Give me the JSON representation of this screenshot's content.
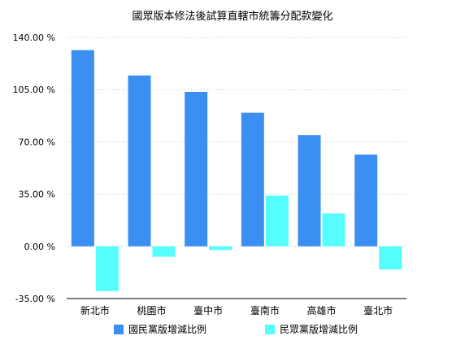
{
  "chart_data": {
    "type": "bar",
    "title": "國眾版本修法後試算直轄市統籌分配款變化",
    "xlabel": "",
    "ylabel": "",
    "categories": [
      "新北市",
      "桃園市",
      "臺中市",
      "臺南市",
      "高雄市",
      "臺北市"
    ],
    "ylim": [
      -35,
      140
    ],
    "yticks": [
      -35,
      0,
      35,
      70,
      105,
      140
    ],
    "ytick_labels": [
      "-35.00 %",
      "0.00 %",
      "35.00 %",
      "70.00 %",
      "105.00 %",
      "140.00 %"
    ],
    "grid": true,
    "legend_position": "bottom",
    "series": [
      {
        "name": "國民黨版增減比例",
        "color": "#3b8ff2",
        "values": [
          131.5,
          114.5,
          103.5,
          89.5,
          74.5,
          61.5
        ]
      },
      {
        "name": "民眾黨版增減比例",
        "color": "#56fdfd",
        "values": [
          -30,
          -7,
          -2.5,
          34,
          22,
          -15.5
        ]
      }
    ]
  }
}
